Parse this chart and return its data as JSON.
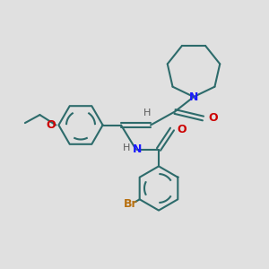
{
  "bg_color": "#e0e0e0",
  "bond_color": "#2d6b6b",
  "n_color": "#1a1aff",
  "o_color": "#cc0000",
  "br_color": "#b87010",
  "h_color": "#5a5a5a",
  "line_width": 1.5,
  "fig_size": [
    3.0,
    3.0
  ],
  "dpi": 100,
  "xlim": [
    0,
    10
  ],
  "ylim": [
    0,
    10
  ]
}
